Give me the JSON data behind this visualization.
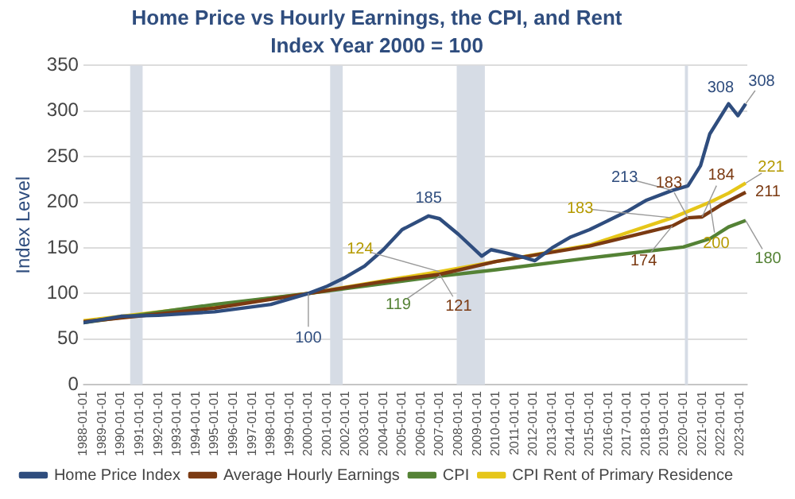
{
  "chart_data": {
    "type": "line",
    "title": "Home Price vs Hourly Earnings, the CPI, and Rent",
    "subtitle": "Index Year 2000 = 100",
    "ylabel": "Index Level",
    "xlim": [
      "1988-01-01",
      "2023-06-01"
    ],
    "xticks": [
      "1988-01-01",
      "1989-01-01",
      "1990-01-01",
      "1991-01-01",
      "1992-01-01",
      "1993-01-01",
      "1994-01-01",
      "1995-01-01",
      "1996-01-01",
      "1997-01-01",
      "1998-01-01",
      "1999-01-01",
      "2000-01-01",
      "2001-01-01",
      "2002-01-01",
      "2003-01-01",
      "2004-01-01",
      "2005-01-01",
      "2006-01-01",
      "2007-01-01",
      "2008-01-01",
      "2009-01-01",
      "2010-01-01",
      "2011-01-01",
      "2012-01-01",
      "2013-01-01",
      "2014-01-01",
      "2015-01-01",
      "2016-01-01",
      "2017-01-01",
      "2018-01-01",
      "2019-01-01",
      "2020-01-01",
      "2021-01-01",
      "2022-01-01",
      "2023-01-01"
    ],
    "ylim": [
      0,
      350
    ],
    "yticks": [
      0,
      50,
      100,
      150,
      200,
      250,
      300,
      350
    ],
    "grid": "y",
    "legend": "bottom",
    "marker": "none",
    "line_style": "solid",
    "series": [
      {
        "name": "Home Price Index",
        "color": "#2f4d7e",
        "x": [
          "1988-01",
          "1990-01",
          "1992-01",
          "1995-01",
          "1998-01",
          "2000-01",
          "2001-01",
          "2002-01",
          "2003-01",
          "2004-01",
          "2005-01",
          "2006-06",
          "2007-01",
          "2008-01",
          "2009-04",
          "2009-10",
          "2010-06",
          "2011-06",
          "2012-02",
          "2013-01",
          "2014-01",
          "2015-01",
          "2016-01",
          "2017-01",
          "2018-01",
          "2019-06",
          "2020-04",
          "2020-12",
          "2021-06",
          "2022-06",
          "2022-12",
          "2023-05"
        ],
        "values": [
          68,
          75,
          76,
          80,
          88,
          100,
          108,
          118,
          130,
          148,
          170,
          185,
          182,
          165,
          141,
          148,
          145,
          140,
          136,
          150,
          162,
          170,
          180,
          190,
          202,
          213,
          218,
          240,
          275,
          308,
          295,
          308
        ]
      },
      {
        "name": "Average Hourly Earnings",
        "color": "#7b3a12",
        "x": [
          "1988-01",
          "1995-01",
          "2000-01",
          "2004-01",
          "2007-01",
          "2010-01",
          "2015-01",
          "2019-06",
          "2020-04",
          "2021-01",
          "2022-01",
          "2023-05"
        ],
        "values": [
          69,
          84,
          100,
          113,
          121,
          135,
          152,
          174,
          183,
          184,
          197,
          211
        ]
      },
      {
        "name": "CPI",
        "color": "#548235",
        "x": [
          "1988-01",
          "1995-01",
          "2000-01",
          "2007-01",
          "2010-01",
          "2015-01",
          "2020-01",
          "2021-06",
          "2022-06",
          "2023-05"
        ],
        "values": [
          68,
          88,
          100,
          119,
          126,
          139,
          151,
          160,
          173,
          180
        ]
      },
      {
        "name": "CPI Rent of Primary Residence",
        "color": "#e6c619",
        "x": [
          "1988-01",
          "1995-01",
          "2000-01",
          "2004-01",
          "2007-01",
          "2010-01",
          "2015-01",
          "2019-06",
          "2021-06",
          "2022-06",
          "2023-05"
        ],
        "values": [
          70,
          87,
          100,
          114,
          124,
          135,
          153,
          183,
          200,
          210,
          221
        ]
      }
    ],
    "bands": [
      {
        "axis": "x",
        "from": "1990-07",
        "to": "1991-03",
        "color": "#d6dce5"
      },
      {
        "axis": "x",
        "from": "2001-03",
        "to": "2001-11",
        "color": "#d6dce5"
      },
      {
        "axis": "x",
        "from": "2007-12",
        "to": "2009-06",
        "color": "#d6dce5"
      },
      {
        "axis": "x",
        "from": "2020-02",
        "to": "2020-04",
        "color": "#d6dce5"
      }
    ],
    "annotations": [
      {
        "text": "185",
        "x": "2006-06",
        "y": 185
      },
      {
        "text": "213",
        "x": "2019-06",
        "y": 213
      },
      {
        "text": "308",
        "x": "2022-06",
        "y": 308
      },
      {
        "text": "308",
        "x": "2023-05",
        "y": 308
      },
      {
        "text": "121",
        "x": "2007-01",
        "y": 121
      },
      {
        "text": "174",
        "x": "2019-06",
        "y": 174
      },
      {
        "text": "183",
        "x": "2020-04",
        "y": 183
      },
      {
        "text": "184",
        "x": "2021-01",
        "y": 184
      },
      {
        "text": "211",
        "x": "2023-05",
        "y": 211
      },
      {
        "text": "119",
        "x": "2007-01",
        "y": 119
      },
      {
        "text": "180",
        "x": "2023-05",
        "y": 180
      },
      {
        "text": "100",
        "x": "2000-01",
        "y": 100
      },
      {
        "text": "124",
        "x": "2007-01",
        "y": 124
      },
      {
        "text": "183",
        "x": "2019-06",
        "y": 183
      },
      {
        "text": "200",
        "x": "2021-06",
        "y": 200
      },
      {
        "text": "221",
        "x": "2023-05",
        "y": 221
      }
    ]
  }
}
